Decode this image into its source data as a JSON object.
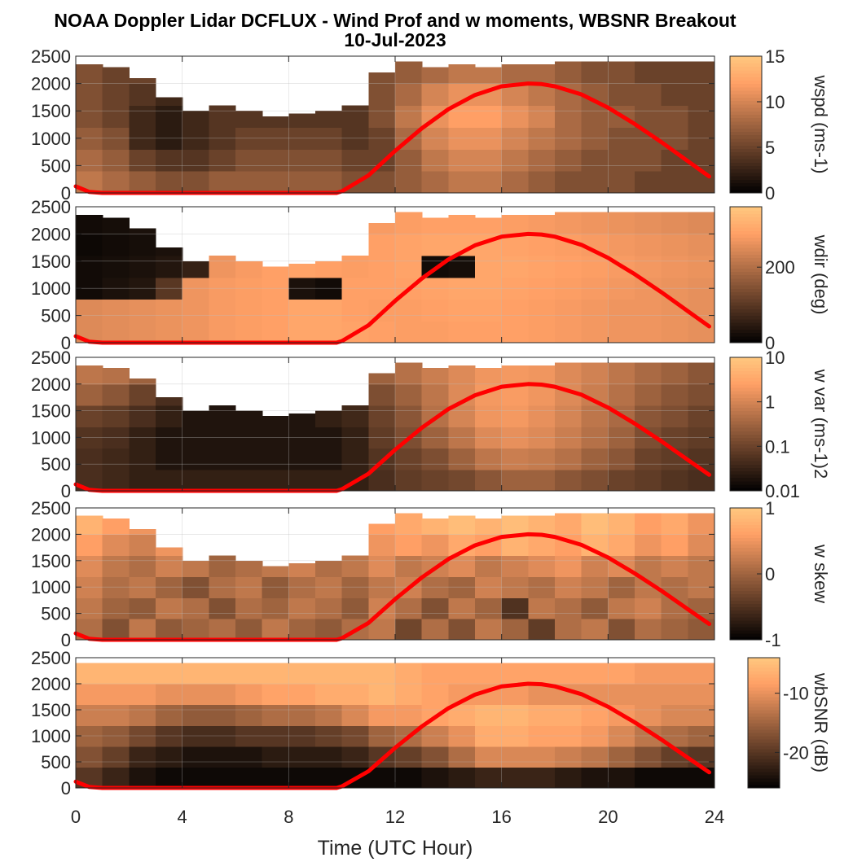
{
  "title": "NOAA Doppler Lidar DCFLUX - Wind Prof and w moments, WBSNR Breakout",
  "subtitle": "10-Jul-2023",
  "colors": {
    "background": "#ffffff",
    "curve": "#ff0000",
    "colormap_low": "#000000",
    "colormap_high": "#ffc080",
    "missing": "#ffffff"
  },
  "chart_data": {
    "type": "heatmap",
    "xlabel": "Time (UTC Hour)",
    "xlim": [
      0,
      24
    ],
    "xticks": [
      0,
      4,
      8,
      12,
      16,
      20,
      24
    ],
    "xtick_labels": [
      "0",
      "4",
      "8",
      "12",
      "16",
      "20",
      "24"
    ],
    "ylim": [
      0,
      2500
    ],
    "yticks": [
      0,
      500,
      1000,
      1500,
      2000,
      2500
    ],
    "ytick_labels": [
      "0",
      "500",
      "1000",
      "1500",
      "2000",
      "2500"
    ],
    "grid": true,
    "colormap": "copper",
    "curve": {
      "color": "#ff0000",
      "x": [
        0,
        0.5,
        1,
        2,
        4,
        6,
        8,
        9.8,
        10,
        11,
        12,
        13,
        14,
        15,
        16,
        17,
        17.5,
        18,
        19,
        20,
        21,
        22,
        23,
        23.8
      ],
      "y": [
        120,
        20,
        0,
        0,
        0,
        0,
        0,
        0,
        30,
        320,
        770,
        1180,
        1530,
        1790,
        1950,
        2000,
        1990,
        1950,
        1800,
        1560,
        1260,
        930,
        580,
        300
      ]
    },
    "panels": [
      {
        "name": "wspd",
        "colorbar_label": "wspd (ms-1)",
        "clim": [
          0,
          15
        ],
        "scale": "linear",
        "colorbar_ticks": [
          0,
          5,
          10,
          15
        ],
        "colorbar_tick_labels": [
          "0",
          "5",
          "10",
          "15"
        ],
        "top_height": [
          2350,
          2300,
          2100,
          1750,
          1500,
          1600,
          1500,
          1400,
          1450,
          1500,
          1600,
          2200,
          2400,
          2300,
          2350,
          2300,
          2350,
          2350,
          2400,
          2450,
          2450,
          2450,
          2450,
          2450
        ],
        "values": [
          [
            9,
            8,
            7,
            6,
            6,
            7,
            7,
            7,
            7,
            7,
            6,
            6,
            7,
            8,
            9,
            9,
            8,
            7,
            6,
            6,
            6,
            5,
            5,
            5
          ],
          [
            8,
            7,
            5,
            4,
            4,
            5,
            6,
            6,
            6,
            6,
            5,
            5,
            7,
            9,
            10,
            10,
            9,
            8,
            7,
            6,
            6,
            6,
            5,
            5
          ],
          [
            7,
            6,
            3,
            2,
            3,
            4,
            5,
            5,
            5,
            5,
            4,
            5,
            8,
            10,
            11,
            11,
            10,
            9,
            8,
            7,
            6,
            6,
            6,
            5
          ],
          [
            6,
            5,
            3,
            2,
            3,
            4,
            4,
            4,
            4,
            4,
            4,
            6,
            9,
            11,
            12,
            12,
            11,
            10,
            8,
            7,
            7,
            6,
            6,
            5
          ],
          [
            6,
            5,
            4,
            3,
            4,
            4,
            4,
            3,
            3,
            3,
            4,
            6,
            8,
            10,
            11,
            11,
            10,
            9,
            8,
            7,
            6,
            6,
            5,
            5
          ],
          [
            6,
            5,
            5,
            5,
            5,
            5,
            4,
            4,
            4,
            4,
            5,
            6,
            7,
            8,
            9,
            9,
            8,
            8,
            7,
            6,
            6,
            5,
            5,
            5
          ]
        ]
      },
      {
        "name": "wdir",
        "colorbar_label": "wdir (deg)",
        "clim": [
          0,
          360
        ],
        "scale": "linear",
        "colorbar_ticks": [
          0,
          200
        ],
        "colorbar_tick_labels": [
          "0",
          "200"
        ],
        "top_height": [
          2350,
          2300,
          2100,
          1750,
          1500,
          1600,
          1500,
          1400,
          1450,
          1500,
          1600,
          2200,
          2400,
          2300,
          2350,
          2300,
          2350,
          2350,
          2400,
          2450,
          2450,
          2450,
          2450,
          2450
        ],
        "values": [
          [
            250,
            255,
            260,
            265,
            270,
            280,
            285,
            290,
            300,
            300,
            295,
            290,
            285,
            285,
            290,
            290,
            290,
            285,
            280,
            275,
            270,
            270,
            265,
            260
          ],
          [
            250,
            255,
            260,
            265,
            270,
            280,
            285,
            290,
            300,
            300,
            290,
            285,
            285,
            290,
            295,
            295,
            290,
            285,
            280,
            275,
            270,
            270,
            265,
            260
          ],
          [
            20,
            30,
            40,
            100,
            270,
            280,
            285,
            290,
            30,
            20,
            290,
            290,
            290,
            295,
            300,
            300,
            295,
            290,
            285,
            280,
            275,
            270,
            265,
            260
          ],
          [
            20,
            25,
            30,
            40,
            60,
            270,
            280,
            290,
            295,
            290,
            285,
            290,
            295,
            20,
            25,
            300,
            300,
            295,
            290,
            285,
            280,
            275,
            270,
            265
          ],
          [
            15,
            20,
            25,
            30,
            40,
            260,
            270,
            280,
            290,
            290,
            285,
            290,
            295,
            300,
            300,
            300,
            295,
            290,
            285,
            280,
            275,
            270,
            265,
            260
          ],
          [
            20,
            25,
            30,
            40,
            60,
            250,
            260,
            270,
            280,
            280,
            275,
            280,
            285,
            290,
            290,
            290,
            285,
            280,
            275,
            270,
            265,
            260,
            255,
            250
          ]
        ]
      },
      {
        "name": "wvar",
        "colorbar_label": "w var (ms-1)2",
        "clim": [
          0.01,
          10
        ],
        "scale": "log",
        "colorbar_ticks": [
          0.01,
          0.1,
          1,
          10
        ],
        "colorbar_tick_labels": [
          "0.01",
          "0.1",
          "1",
          "10"
        ],
        "top_height": [
          2350,
          2300,
          2100,
          1750,
          1500,
          1600,
          1500,
          1400,
          1450,
          1500,
          1600,
          2200,
          2400,
          2300,
          2350,
          2300,
          2350,
          2350,
          2400,
          2450,
          2450,
          2450,
          2450,
          2450
        ],
        "values": [
          [
            0.05,
            0.04,
            0.03,
            0.03,
            0.03,
            0.03,
            0.03,
            0.03,
            0.03,
            0.03,
            0.03,
            0.05,
            0.08,
            0.1,
            0.12,
            0.2,
            0.3,
            0.3,
            0.2,
            0.15,
            0.1,
            0.08,
            0.06,
            0.05
          ],
          [
            0.05,
            0.04,
            0.03,
            0.02,
            0.02,
            0.02,
            0.02,
            0.02,
            0.02,
            0.02,
            0.03,
            0.06,
            0.1,
            0.15,
            0.3,
            0.6,
            0.8,
            0.7,
            0.5,
            0.3,
            0.2,
            0.1,
            0.08,
            0.06
          ],
          [
            0.06,
            0.05,
            0.03,
            0.02,
            0.02,
            0.02,
            0.02,
            0.02,
            0.02,
            0.02,
            0.03,
            0.08,
            0.15,
            0.3,
            0.6,
            1.2,
            1.5,
            1.2,
            0.8,
            0.5,
            0.3,
            0.15,
            0.1,
            0.08
          ],
          [
            0.1,
            0.08,
            0.05,
            0.03,
            0.02,
            0.02,
            0.02,
            0.02,
            0.02,
            0.03,
            0.04,
            0.1,
            0.2,
            0.5,
            1.0,
            1.8,
            2.0,
            1.5,
            1.0,
            0.6,
            0.4,
            0.2,
            0.15,
            0.1
          ],
          [
            0.3,
            0.2,
            0.1,
            0.05,
            0.04,
            0.03,
            0.03,
            0.03,
            0.03,
            0.04,
            0.06,
            0.15,
            0.3,
            0.6,
            1.2,
            2.0,
            2.2,
            1.8,
            1.2,
            0.8,
            0.5,
            0.3,
            0.2,
            0.15
          ],
          [
            0.6,
            0.5,
            0.3,
            0.2,
            0.15,
            0.1,
            0.1,
            0.1,
            0.1,
            0.1,
            0.15,
            0.3,
            0.5,
            0.8,
            1.2,
            1.8,
            2.0,
            1.8,
            1.2,
            0.9,
            0.6,
            0.4,
            0.3,
            0.2
          ]
        ]
      },
      {
        "name": "wskew",
        "colorbar_label": "w skew",
        "clim": [
          -1,
          1
        ],
        "scale": "linear",
        "colorbar_ticks": [
          -1,
          0,
          1
        ],
        "colorbar_tick_labels": [
          "-1",
          "0",
          "1"
        ],
        "top_height": [
          2350,
          2300,
          2100,
          1750,
          1500,
          1600,
          1500,
          1400,
          1450,
          1500,
          1600,
          2200,
          2400,
          2300,
          2350,
          2300,
          2350,
          2350,
          2400,
          2450,
          2450,
          2450,
          2450,
          2450
        ],
        "values": [
          [
            0.1,
            -0.2,
            0.2,
            -0.1,
            0.0,
            0.1,
            -0.1,
            0.2,
            0.0,
            -0.1,
            0.1,
            0.2,
            -0.3,
            0.1,
            -0.2,
            0.2,
            0.0,
            -0.4,
            0.1,
            0.2,
            -0.2,
            0.1,
            0.0,
            -0.1
          ],
          [
            0.2,
            0.0,
            -0.1,
            0.2,
            0.1,
            -0.2,
            0.1,
            0.0,
            0.2,
            0.1,
            -0.1,
            0.3,
            0.1,
            -0.2,
            0.2,
            0.0,
            -0.5,
            0.2,
            0.1,
            -0.1,
            0.2,
            0.3,
            0.1,
            0.0
          ],
          [
            0.3,
            0.1,
            0.2,
            0.0,
            -0.2,
            0.1,
            0.2,
            -0.1,
            0.1,
            0.2,
            0.0,
            0.2,
            0.3,
            0.1,
            0.0,
            0.3,
            0.2,
            0.1,
            0.3,
            0.2,
            0.0,
            0.2,
            0.1,
            0.2
          ],
          [
            0.4,
            0.2,
            0.1,
            0.3,
            0.2,
            0.0,
            0.1,
            0.2,
            0.3,
            0.1,
            0.2,
            0.4,
            0.2,
            0.3,
            0.4,
            0.2,
            0.3,
            0.4,
            0.5,
            0.3,
            0.4,
            0.2,
            0.3,
            0.2
          ],
          [
            0.6,
            0.4,
            0.3,
            0.5,
            0.4,
            0.3,
            0.2,
            0.4,
            0.3,
            0.2,
            0.4,
            0.5,
            0.6,
            0.5,
            0.7,
            0.6,
            0.8,
            0.7,
            0.6,
            0.8,
            0.7,
            0.5,
            0.6,
            0.4
          ],
          [
            0.8,
            0.6,
            0.5,
            0.6,
            0.5,
            0.4,
            0.3,
            0.4,
            0.5,
            0.4,
            0.5,
            0.6,
            0.7,
            0.8,
            0.9,
            0.8,
            0.9,
            0.8,
            0.7,
            0.9,
            0.8,
            0.6,
            0.7,
            0.5
          ]
        ]
      },
      {
        "name": "wbsnr",
        "colorbar_label": "wbSNR (dB)",
        "clim": [
          -26,
          -4
        ],
        "scale": "linear",
        "colorbar_ticks": [
          -20,
          -10
        ],
        "colorbar_tick_labels": [
          "-20",
          "-10"
        ],
        "top_height": [
          2500,
          2500,
          2500,
          2500,
          2500,
          2500,
          2500,
          2500,
          2500,
          2500,
          2500,
          2500,
          2500,
          2500,
          2500,
          2500,
          2500,
          2500,
          2500,
          2500,
          2500,
          2500,
          2500,
          2500
        ],
        "values": [
          [
            -20,
            -22,
            -24,
            -25,
            -25,
            -25,
            -25,
            -25,
            -25,
            -25,
            -25,
            -25,
            -25,
            -24,
            -23,
            -22,
            -22,
            -22,
            -23,
            -24,
            -24,
            -25,
            -25,
            -25
          ],
          [
            -17,
            -19,
            -22,
            -23,
            -24,
            -24,
            -24,
            -23,
            -23,
            -23,
            -22,
            -20,
            -19,
            -17,
            -14,
            -11,
            -11,
            -11,
            -12,
            -13,
            -15,
            -17,
            -19,
            -20
          ],
          [
            -15,
            -16,
            -18,
            -20,
            -21,
            -21,
            -20,
            -20,
            -20,
            -19,
            -18,
            -15,
            -14,
            -12,
            -10,
            -7,
            -7,
            -8,
            -8,
            -9,
            -11,
            -13,
            -14,
            -15
          ],
          [
            -12,
            -12,
            -13,
            -15,
            -16,
            -16,
            -15,
            -14,
            -14,
            -13,
            -11,
            -9,
            -9,
            -8,
            -7,
            -6,
            -6,
            -7,
            -7,
            -8,
            -9,
            -10,
            -11,
            -11
          ],
          [
            -9,
            -9,
            -9,
            -10,
            -10,
            -10,
            -9,
            -8,
            -8,
            -7,
            -7,
            -6,
            -7,
            -8,
            -9,
            -9,
            -9,
            -10,
            -10,
            -10,
            -10,
            -10,
            -10,
            -10
          ],
          [
            -6,
            -6,
            -6,
            -6,
            -6,
            -6,
            -6,
            -6,
            -6,
            -6,
            -6,
            -6,
            -7,
            -8,
            -8,
            -8,
            -8,
            -8,
            -8,
            -8,
            -8,
            -9,
            -9,
            -9
          ]
        ]
      }
    ]
  }
}
